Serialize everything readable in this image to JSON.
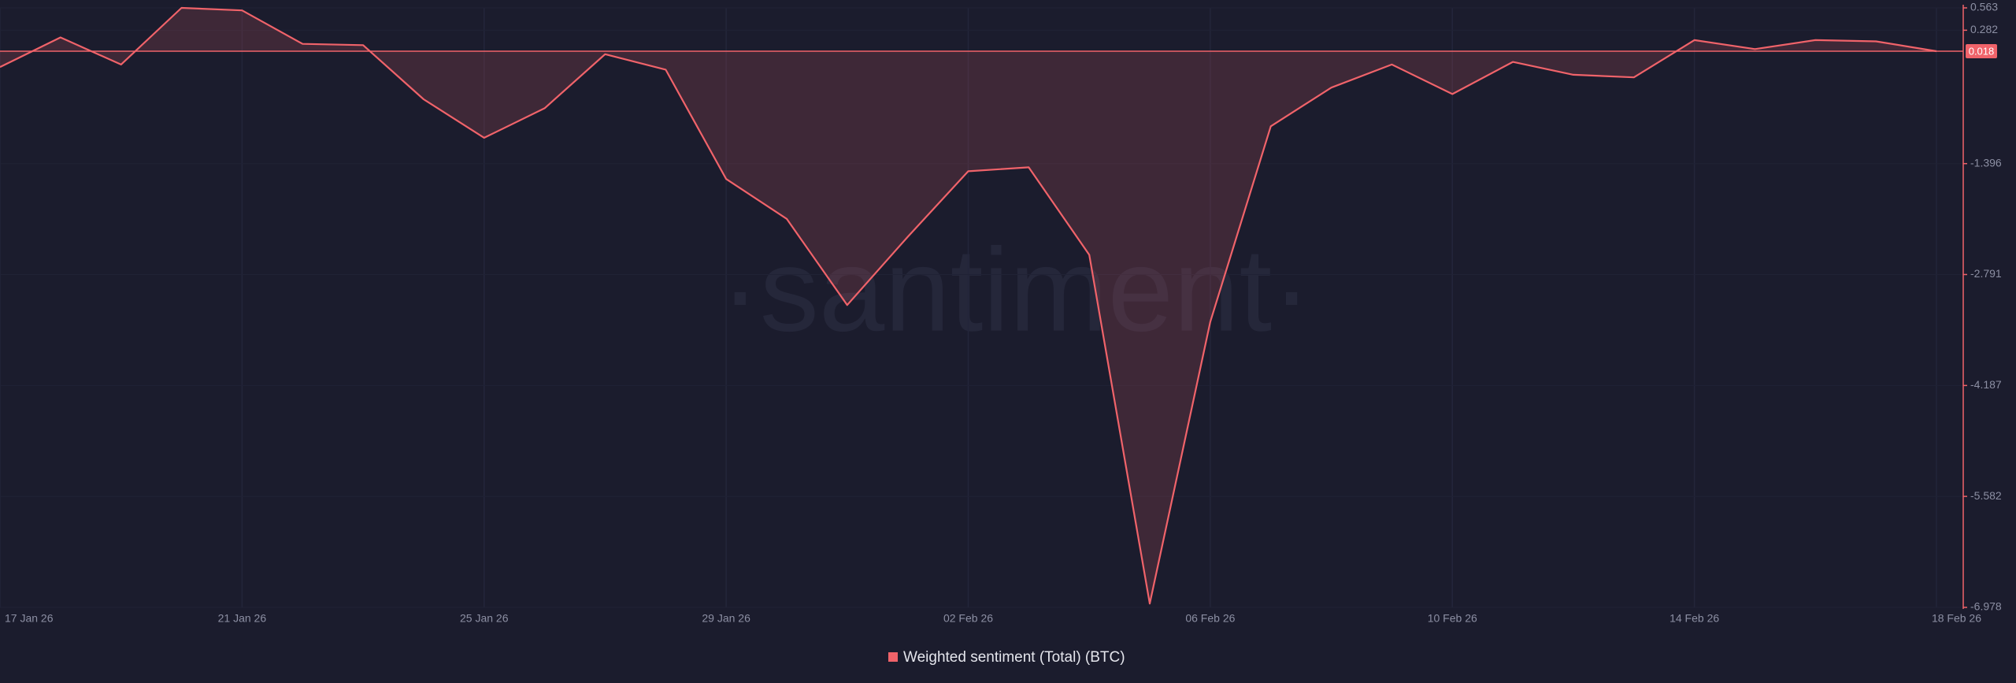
{
  "chart_data": {
    "type": "area",
    "watermark": "·santiment·",
    "x": [
      "2026-01-17",
      "2026-01-18",
      "2026-01-19",
      "2026-01-20",
      "2026-01-21",
      "2026-01-22",
      "2026-01-23",
      "2026-01-24",
      "2026-01-25",
      "2026-01-26",
      "2026-01-27",
      "2026-01-28",
      "2026-01-29",
      "2026-01-30",
      "2026-01-31",
      "2026-02-01",
      "2026-02-02",
      "2026-02-03",
      "2026-02-04",
      "2026-02-05",
      "2026-02-06",
      "2026-02-07",
      "2026-02-08",
      "2026-02-09",
      "2026-02-10",
      "2026-02-11",
      "2026-02-12",
      "2026-02-13",
      "2026-02-14",
      "2026-02-15",
      "2026-02-16",
      "2026-02-17",
      "2026-02-18"
    ],
    "series": [
      {
        "name": "Weighted sentiment (Total) (BTC)",
        "color": "#f0636a",
        "values": [
          -0.181,
          0.191,
          -0.149,
          0.563,
          0.531,
          0.11,
          0.094,
          -0.586,
          -1.071,
          -0.699,
          -0.02,
          -0.214,
          -1.589,
          -2.091,
          -3.175,
          -2.317,
          -1.492,
          -1.443,
          -2.544,
          -6.93,
          -3.385,
          -0.926,
          -0.44,
          -0.149,
          -0.521,
          -0.117,
          -0.278,
          -0.311,
          0.158,
          0.045,
          0.158,
          0.142,
          0.018
        ]
      }
    ],
    "reference_line": 0.018,
    "ylim": [
      -6.978,
      0.563
    ],
    "yticks": [
      0.563,
      0.282,
      -1.396,
      -2.791,
      -4.187,
      -5.582,
      -6.978
    ],
    "xlim": [
      "2026-01-17",
      "2026-02-18"
    ],
    "xticks": [
      {
        "value": "2026-01-17",
        "label": "17 Jan 26"
      },
      {
        "value": "2026-01-21",
        "label": "21 Jan 26"
      },
      {
        "value": "2026-01-25",
        "label": "25 Jan 26"
      },
      {
        "value": "2026-01-29",
        "label": "29 Jan 26"
      },
      {
        "value": "2026-02-02",
        "label": "02 Feb 26"
      },
      {
        "value": "2026-02-06",
        "label": "06 Feb 26"
      },
      {
        "value": "2026-02-10",
        "label": "10 Feb 26"
      },
      {
        "value": "2026-02-14",
        "label": "14 Feb 26"
      },
      {
        "value": "2026-02-18",
        "label": "18 Feb 26"
      }
    ],
    "grid": true
  }
}
